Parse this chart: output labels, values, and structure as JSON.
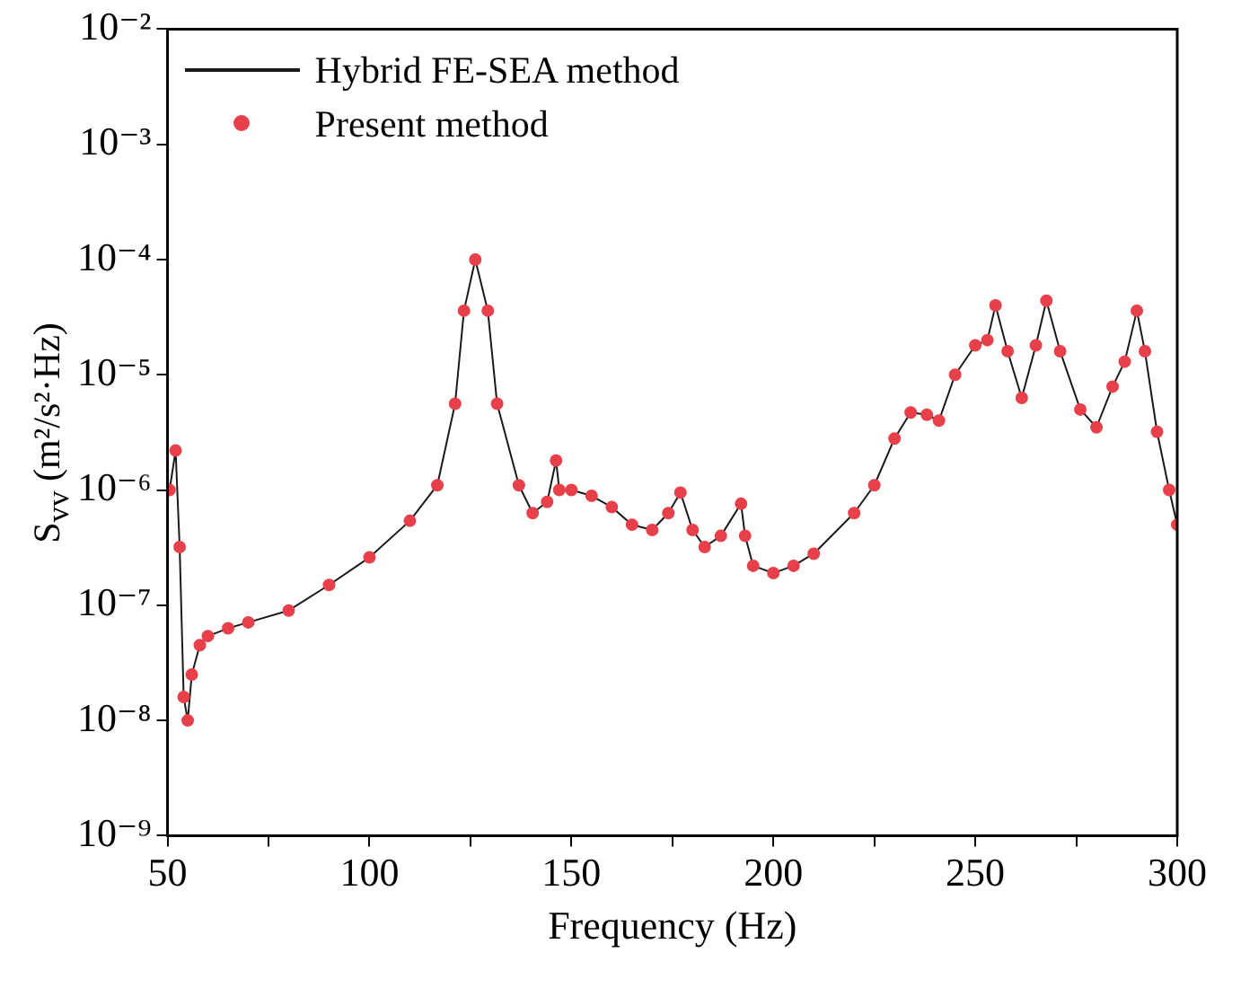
{
  "chart_data": {
    "type": "line",
    "xlabel": "Frequency (Hz)",
    "ylabel": "S$_{vv}$ (m²/s²·Hz)",
    "log": "y",
    "xlim": [
      50,
      300
    ],
    "xticks": [
      50,
      {
        "value": 75,
        "label": null
      },
      100,
      {
        "value": 125,
        "label": null
      },
      150,
      {
        "value": 175,
        "label": null
      },
      200,
      {
        "value": 225,
        "label": null
      },
      250,
      {
        "value": 275,
        "label": null
      },
      300
    ],
    "ylim": [
      1e-09,
      0.01
    ],
    "yticks": [
      {
        "value": 1e-09,
        "label": "10⁻⁹"
      },
      {
        "value": 1e-08,
        "label": "10⁻⁸"
      },
      {
        "value": 1e-07,
        "label": "10⁻⁷"
      },
      {
        "value": 1e-06,
        "label": "10⁻⁶"
      },
      {
        "value": 1e-05,
        "label": "10⁻⁵"
      },
      {
        "value": 0.0001,
        "label": "10⁻⁴"
      },
      {
        "value": 0.001,
        "label": "10⁻³"
      },
      {
        "value": 0.01,
        "label": "10⁻²"
      }
    ],
    "grid": false,
    "legend": "top left",
    "x": [
      50.5,
      52,
      53,
      54,
      55,
      56,
      58,
      60,
      65,
      70,
      80,
      90,
      100,
      110,
      116.8,
      121.2,
      123.4,
      126.2,
      129.3,
      131.6,
      137,
      140.4,
      144,
      146.2,
      147,
      150,
      155,
      160,
      165,
      170,
      174,
      177,
      180,
      183,
      187,
      192,
      193,
      195,
      200,
      205,
      210,
      220,
      225,
      230,
      234,
      238,
      241,
      245,
      250,
      253,
      255,
      258,
      261.5,
      265,
      267.6,
      271,
      276,
      280,
      284,
      287,
      290,
      292,
      295,
      298,
      300
    ],
    "series": [
      {
        "name": "Hybrid FE-SEA method",
        "marker": "none",
        "color": "#1a1a1a",
        "values": [
          1e-06,
          2.2e-06,
          3.2e-07,
          1.6e-08,
          1e-08,
          2.5e-08,
          4.5e-08,
          5.4e-08,
          6.3e-08,
          7.1e-08,
          9e-08,
          1.5e-07,
          2.6e-07,
          5.4e-07,
          1.1e-06,
          5.6e-06,
          3.6e-05,
          0.0001,
          3.6e-05,
          5.6e-06,
          1.1e-06,
          6.3e-07,
          7.9e-07,
          1.8e-06,
          1e-06,
          1e-06,
          8.9e-07,
          7.1e-07,
          5e-07,
          4.5e-07,
          6.3e-07,
          9.5e-07,
          4.5e-07,
          3.2e-07,
          4e-07,
          7.6e-07,
          4e-07,
          2.2e-07,
          1.9e-07,
          2.2e-07,
          2.8e-07,
          6.3e-07,
          1.1e-06,
          2.8e-06,
          4.7e-06,
          4.5e-06,
          4e-06,
          1e-05,
          1.8e-05,
          2e-05,
          4e-05,
          1.6e-05,
          6.3e-06,
          1.8e-05,
          4.4e-05,
          1.6e-05,
          5e-06,
          3.5e-06,
          7.9e-06,
          1.3e-05,
          3.6e-05,
          1.6e-05,
          3.2e-06,
          1e-06,
          5e-07
        ]
      },
      {
        "name": "Present method",
        "type": "scatter",
        "marker": "circle",
        "color": "#e8404a",
        "values": [
          1e-06,
          2.2e-06,
          3.2e-07,
          1.6e-08,
          1e-08,
          2.5e-08,
          4.5e-08,
          5.4e-08,
          6.3e-08,
          7.1e-08,
          9e-08,
          1.5e-07,
          2.6e-07,
          5.4e-07,
          1.1e-06,
          5.6e-06,
          3.6e-05,
          0.0001,
          3.6e-05,
          5.6e-06,
          1.1e-06,
          6.3e-07,
          7.9e-07,
          1.8e-06,
          1e-06,
          1e-06,
          8.9e-07,
          7.1e-07,
          5e-07,
          4.5e-07,
          6.3e-07,
          9.5e-07,
          4.5e-07,
          3.2e-07,
          4e-07,
          7.6e-07,
          4e-07,
          2.2e-07,
          1.9e-07,
          2.2e-07,
          2.8e-07,
          6.3e-07,
          1.1e-06,
          2.8e-06,
          4.7e-06,
          4.5e-06,
          4e-06,
          1e-05,
          1.8e-05,
          2e-05,
          4e-05,
          1.6e-05,
          6.3e-06,
          1.8e-05,
          4.4e-05,
          1.6e-05,
          5e-06,
          3.5e-06,
          7.9e-06,
          1.3e-05,
          3.6e-05,
          1.6e-05,
          3.2e-06,
          1e-06,
          5e-07
        ]
      }
    ]
  }
}
